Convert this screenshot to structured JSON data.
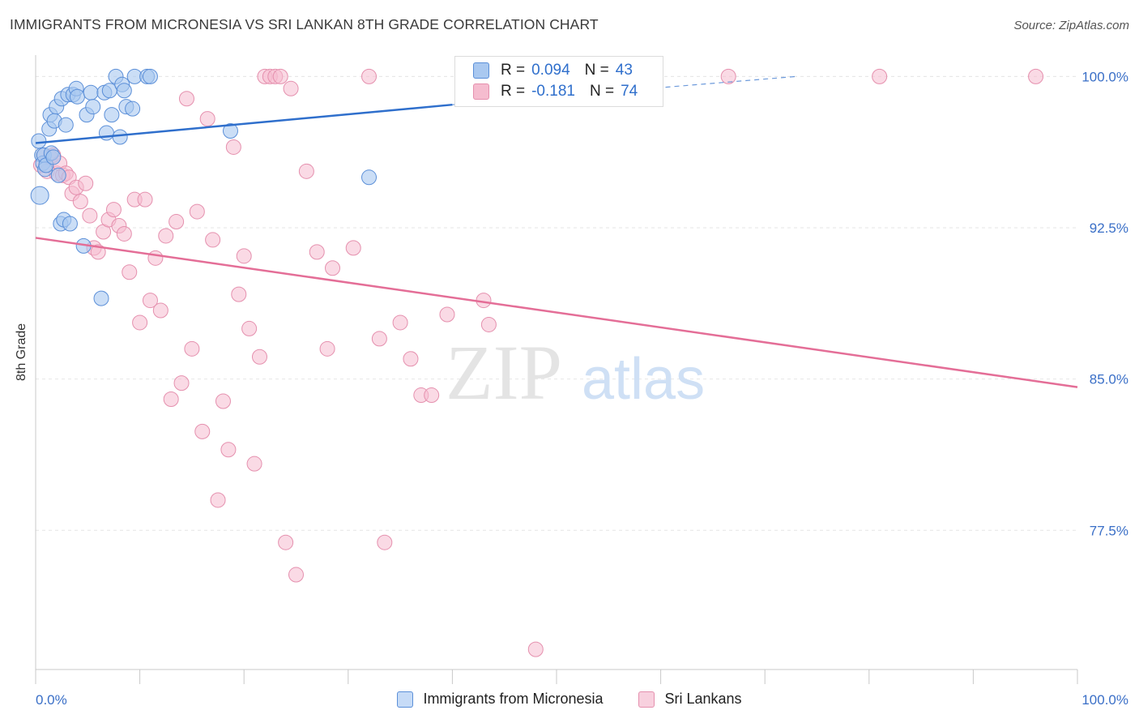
{
  "title": "IMMIGRANTS FROM MICRONESIA VS SRI LANKAN 8TH GRADE CORRELATION CHART",
  "source": "Source: ZipAtlas.com",
  "watermark": {
    "zip": "ZIP",
    "atlas": "atlas"
  },
  "legend": {
    "series1": {
      "r_label": "R =",
      "r_value": "0.094",
      "n_label": "N =",
      "n_value": "43"
    },
    "series2": {
      "r_label": "R =",
      "r_value": "-0.181",
      "n_label": "N =",
      "n_value": "74"
    }
  },
  "bottom_legend": {
    "series1": "Immigrants from Micronesia",
    "series2": "Sri Lankans"
  },
  "colors": {
    "blue_fill": "#a9c8f0",
    "blue_stroke": "#5b8fd8",
    "blue_line": "#2f6fcc",
    "pink_fill": "#f5bccf",
    "pink_stroke": "#e590ae",
    "pink_line": "#e46e97",
    "axis_text": "#3a6fc7",
    "grid": "#e6e6e6"
  },
  "chart_data": {
    "type": "scatter",
    "title": "IMMIGRANTS FROM MICRONESIA VS SRI LANKAN 8TH GRADE CORRELATION CHART",
    "xlabel": "",
    "ylabel": "8th Grade",
    "xlim": [
      0,
      100
    ],
    "ylim": [
      70.6,
      101.3
    ],
    "x_tick_labels": [
      "0.0%",
      "100.0%"
    ],
    "y_ticks": [
      100.0,
      92.5,
      85.0,
      77.5
    ],
    "y_tick_labels": [
      "100.0%",
      "92.5%",
      "85.0%",
      "77.5%"
    ],
    "grid": true,
    "series": [
      {
        "name": "Immigrants from Micronesia",
        "r": 0.094,
        "n": 43,
        "trend": {
          "x0": 0,
          "y0": 96.7,
          "x1": 40,
          "y1": 98.6,
          "dash_x1": 73,
          "dash_y1": 100.0
        },
        "points": [
          [
            0.3,
            96.8
          ],
          [
            0.4,
            94.1
          ],
          [
            0.6,
            96.1
          ],
          [
            0.7,
            95.7
          ],
          [
            0.8,
            96.1
          ],
          [
            0.9,
            95.4
          ],
          [
            1.0,
            95.6
          ],
          [
            1.3,
            97.4
          ],
          [
            1.4,
            98.1
          ],
          [
            1.5,
            96.2
          ],
          [
            1.7,
            96.0
          ],
          [
            1.8,
            97.8
          ],
          [
            2.0,
            98.5
          ],
          [
            2.2,
            95.1
          ],
          [
            2.4,
            92.7
          ],
          [
            2.5,
            98.9
          ],
          [
            2.7,
            92.9
          ],
          [
            2.9,
            97.6
          ],
          [
            3.1,
            99.1
          ],
          [
            3.3,
            92.7
          ],
          [
            3.6,
            99.1
          ],
          [
            3.9,
            99.4
          ],
          [
            4.0,
            99.0
          ],
          [
            4.6,
            91.6
          ],
          [
            4.9,
            98.1
          ],
          [
            5.3,
            99.2
          ],
          [
            5.5,
            98.5
          ],
          [
            6.3,
            89.0
          ],
          [
            6.6,
            99.2
          ],
          [
            6.8,
            97.2
          ],
          [
            7.1,
            99.3
          ],
          [
            7.3,
            98.1
          ],
          [
            7.7,
            100.0
          ],
          [
            8.1,
            97.0
          ],
          [
            8.3,
            99.6
          ],
          [
            8.5,
            99.3
          ],
          [
            8.7,
            98.5
          ],
          [
            9.3,
            98.4
          ],
          [
            9.5,
            100.0
          ],
          [
            10.7,
            100.0
          ],
          [
            11.0,
            100.0
          ],
          [
            18.7,
            97.3
          ],
          [
            32.0,
            95.0
          ]
        ]
      },
      {
        "name": "Sri Lankans",
        "r": -0.181,
        "n": 74,
        "trend": {
          "x0": 0,
          "y0": 92.0,
          "x1": 100,
          "y1": 84.6
        },
        "points": [
          [
            0.5,
            95.6
          ],
          [
            0.8,
            96.1
          ],
          [
            1.1,
            95.3
          ],
          [
            1.4,
            96.0
          ],
          [
            1.7,
            96.1
          ],
          [
            2.0,
            95.2
          ],
          [
            2.3,
            95.7
          ],
          [
            2.6,
            95.1
          ],
          [
            2.9,
            95.2
          ],
          [
            3.2,
            95.0
          ],
          [
            3.5,
            94.2
          ],
          [
            3.9,
            94.5
          ],
          [
            4.3,
            93.8
          ],
          [
            4.8,
            94.7
          ],
          [
            5.2,
            93.1
          ],
          [
            5.6,
            91.5
          ],
          [
            6.0,
            91.3
          ],
          [
            6.5,
            92.3
          ],
          [
            7.0,
            92.9
          ],
          [
            7.5,
            93.4
          ],
          [
            8.0,
            92.6
          ],
          [
            8.5,
            92.2
          ],
          [
            9.0,
            90.3
          ],
          [
            9.5,
            93.9
          ],
          [
            10.0,
            87.8
          ],
          [
            10.5,
            93.9
          ],
          [
            11.0,
            88.9
          ],
          [
            11.5,
            91.0
          ],
          [
            12.0,
            88.4
          ],
          [
            12.5,
            92.1
          ],
          [
            13.0,
            84.0
          ],
          [
            13.5,
            92.8
          ],
          [
            14.0,
            84.8
          ],
          [
            14.5,
            98.9
          ],
          [
            15.0,
            86.5
          ],
          [
            15.5,
            93.3
          ],
          [
            16.0,
            82.4
          ],
          [
            16.5,
            97.9
          ],
          [
            17.0,
            91.9
          ],
          [
            17.5,
            79.0
          ],
          [
            18.0,
            83.9
          ],
          [
            18.5,
            81.5
          ],
          [
            19.0,
            96.5
          ],
          [
            19.5,
            89.2
          ],
          [
            20.0,
            91.1
          ],
          [
            20.5,
            87.5
          ],
          [
            21.0,
            80.8
          ],
          [
            21.5,
            86.1
          ],
          [
            22.0,
            100.0
          ],
          [
            22.5,
            100.0
          ],
          [
            23.0,
            100.0
          ],
          [
            23.5,
            100.0
          ],
          [
            24.0,
            76.9
          ],
          [
            24.5,
            99.4
          ],
          [
            25.0,
            75.3
          ],
          [
            26.0,
            95.3
          ],
          [
            27.0,
            91.3
          ],
          [
            28.0,
            86.5
          ],
          [
            28.5,
            90.5
          ],
          [
            30.5,
            91.5
          ],
          [
            32.0,
            100.0
          ],
          [
            33.0,
            87.0
          ],
          [
            33.5,
            76.9
          ],
          [
            35.0,
            87.8
          ],
          [
            36.0,
            86.0
          ],
          [
            37.0,
            84.2
          ],
          [
            38.0,
            84.2
          ],
          [
            39.5,
            88.2
          ],
          [
            43.0,
            88.9
          ],
          [
            43.5,
            87.7
          ],
          [
            48.0,
            71.6
          ],
          [
            66.5,
            100.0
          ],
          [
            81.0,
            100.0
          ],
          [
            96.0,
            100.0
          ]
        ]
      }
    ]
  }
}
